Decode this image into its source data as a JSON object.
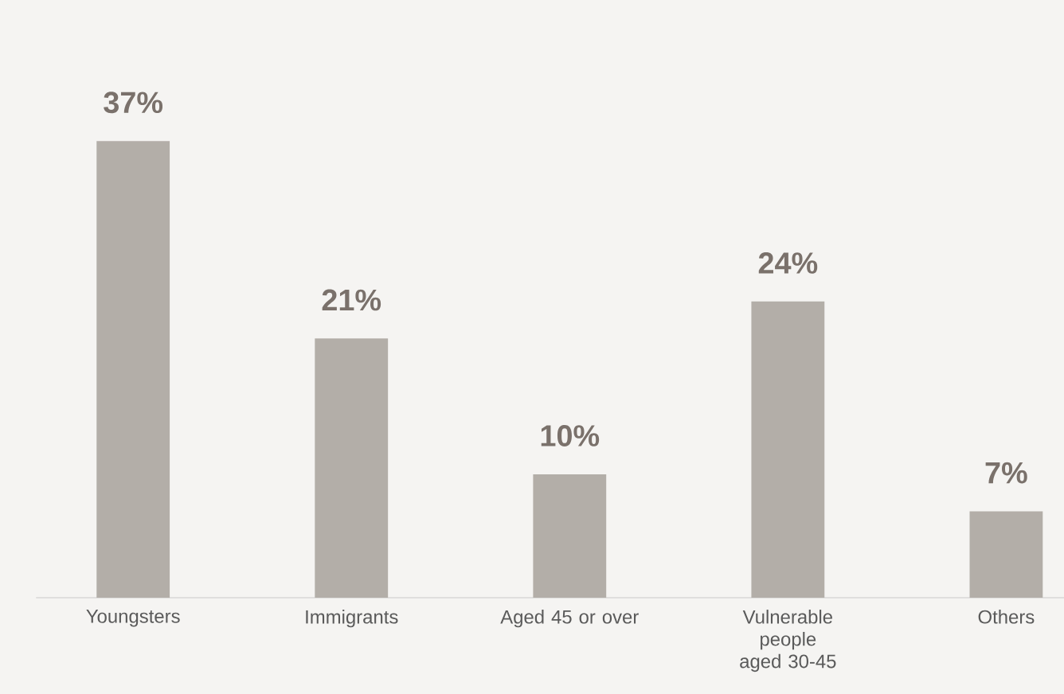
{
  "chart_data": {
    "type": "bar",
    "categories": [
      "Youngsters",
      "Immigrants",
      "Aged 45 or over",
      "Vulnerable people aged 30-45",
      "Others"
    ],
    "values": [
      37,
      21,
      10,
      24,
      7
    ],
    "value_labels": [
      "37%",
      "21%",
      "10%",
      "24%",
      "7%"
    ],
    "color": "#b3aea8"
  }
}
